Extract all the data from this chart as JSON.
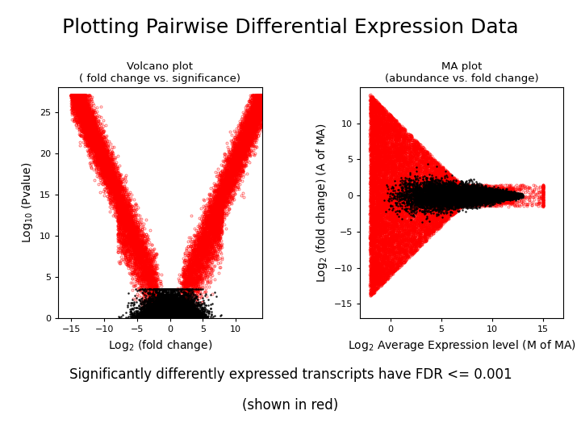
{
  "title": "Plotting Pairwise Differential Expression Data",
  "title_fontsize": 18,
  "title_fontweight": "normal",
  "background_color": "#ffffff",
  "volcano_title_line1": "Volcano plot",
  "volcano_title_line2": "( fold change vs. significance)",
  "volcano_xlabel": "Log$_2$ (fold change)",
  "volcano_ylabel": "Log$_{10}$ (Pvalue)",
  "volcano_xlim": [
    -17,
    14
  ],
  "volcano_ylim": [
    0,
    28
  ],
  "volcano_xticks": [
    -15,
    -10,
    -5,
    0,
    5,
    10
  ],
  "volcano_yticks": [
    0,
    5,
    10,
    15,
    20,
    25
  ],
  "ma_title_line1": "MA plot",
  "ma_title_line2": "(abundance vs. fold change)",
  "ma_xlabel_main": "Log$_2$ Average Expression level",
  "ma_xlabel_small": " (M of MA)",
  "ma_ylabel_main": "Log$_2$ (fold change)",
  "ma_ylabel_small": " (A of MA)",
  "ma_xlim": [
    -3,
    17
  ],
  "ma_ylim": [
    -17,
    15
  ],
  "ma_xticks": [
    0,
    5,
    10,
    15
  ],
  "ma_yticks": [
    -15,
    -10,
    -5,
    0,
    5,
    10
  ],
  "footer_line1": "Significantly differently expressed transcripts have FDR <= 0.001",
  "footer_line2": "(shown in red)",
  "footer_fontsize": 12,
  "red_color": "#ff0000",
  "black_color": "#000000",
  "marker_size": 1.8,
  "marker_linewidth": 0.6,
  "seed": 42
}
